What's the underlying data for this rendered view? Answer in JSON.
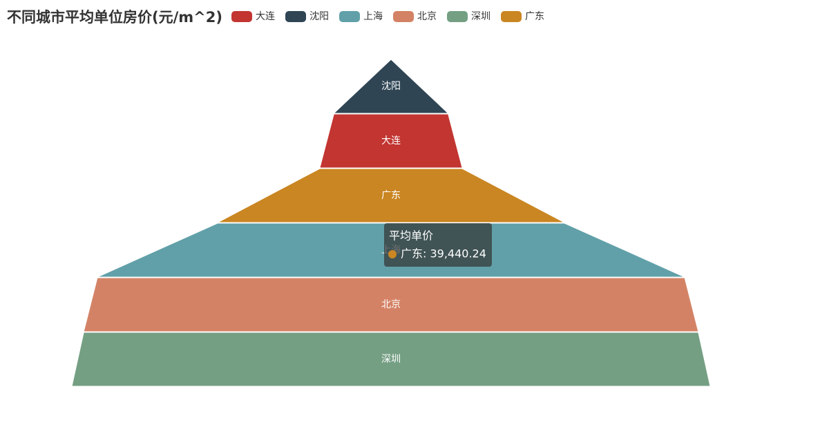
{
  "chart_data": {
    "type": "funnel",
    "title": "不同城市平均单位房价(元/m^2)",
    "series_name": "平均单价",
    "sort": "ascending",
    "categories": [
      "大连",
      "沈阳",
      "上海",
      "北京",
      "深圳",
      "广东"
    ],
    "values": [
      16200,
      13000,
      66800,
      69900,
      72600,
      39440.24
    ],
    "colors": [
      "#c23531",
      "#2f4554",
      "#61a0a8",
      "#d48265",
      "#749f83",
      "#ca8622"
    ],
    "tooltip": {
      "category_index": 5,
      "text": "广东: 39,440.24"
    }
  }
}
